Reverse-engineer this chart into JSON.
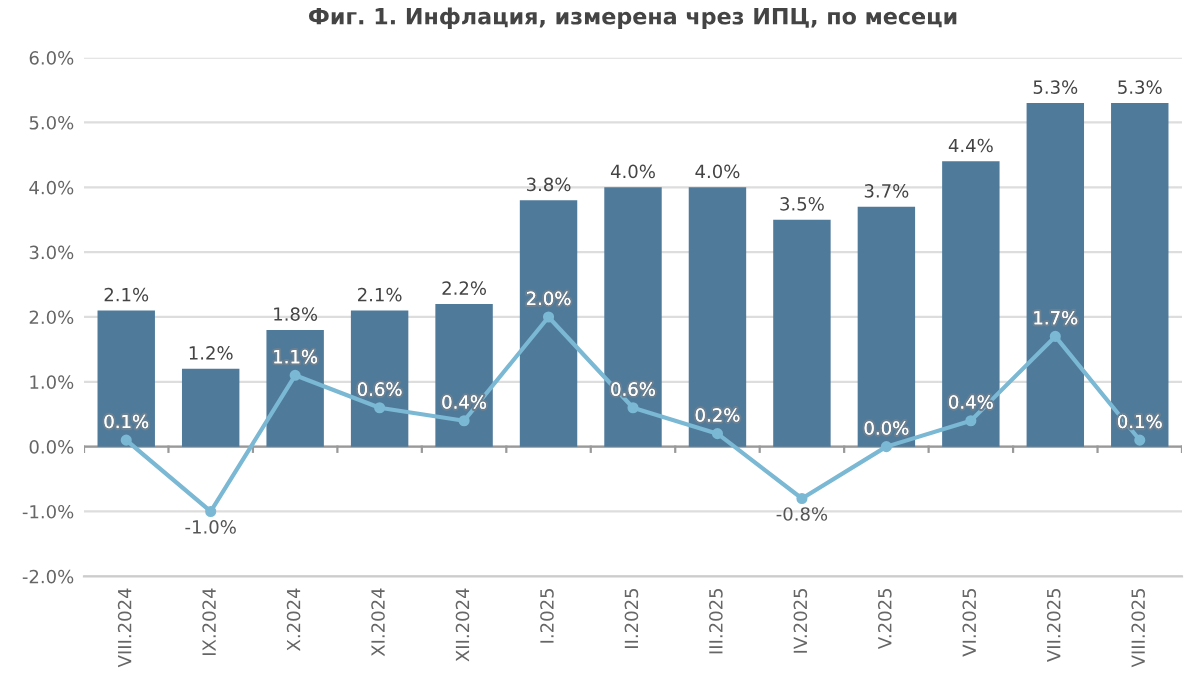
{
  "chart_data": {
    "type": "bar",
    "title": "Фиг. 1. Инфлация, измерена чрез ИПЦ, по месеци",
    "categories": [
      "VIII.2024",
      "IX.2024",
      "X.2024",
      "XI.2024",
      "XII.2024",
      "I.2025",
      "II.2025",
      "III.2025",
      "IV.2025",
      "V.2025",
      "VI.2025",
      "VII.2025",
      "VIII.2025"
    ],
    "series": [
      {
        "color": "#4f7a9a",
        "values": [
          2.1,
          1.2,
          1.8,
          2.1,
          2.2,
          3.8,
          4.0,
          4.0,
          3.5,
          3.7,
          4.4,
          5.3,
          5.3
        ],
        "value_labels": [
          "2.1%",
          "1.2%",
          "1.8%",
          "2.1%",
          "2.2%",
          "3.8%",
          "4.0%",
          "4.0%",
          "3.5%",
          "3.7%",
          "4.4%",
          "5.3%",
          "5.3%"
        ]
      },
      {
        "type": "line",
        "color": "#7ab8d4",
        "marker": "circle",
        "values": [
          0.1,
          -1.0,
          1.1,
          0.6,
          0.4,
          2.0,
          0.6,
          0.2,
          -0.8,
          0.0,
          0.4,
          1.7,
          0.1
        ],
        "value_labels": [
          "0.1%",
          "-1.0%",
          "1.1%",
          "0.6%",
          "0.4%",
          "2.0%",
          "0.6%",
          "0.2%",
          "-0.8%",
          "0.0%",
          "0.4%",
          "1.7%",
          "0.1%"
        ]
      }
    ],
    "ylim": [
      -2.0,
      6.0
    ],
    "yticks": [
      {
        "value": -2.0,
        "label": "-2.0%"
      },
      {
        "value": -1.0,
        "label": "-1.0%"
      },
      {
        "value": 0.0,
        "label": "0.0%"
      },
      {
        "value": 1.0,
        "label": "1.0%"
      },
      {
        "value": 2.0,
        "label": "2.0%"
      },
      {
        "value": 3.0,
        "label": "3.0%"
      },
      {
        "value": 4.0,
        "label": "4.0%"
      },
      {
        "value": 5.0,
        "label": "5.0%"
      },
      {
        "value": 6.0,
        "label": "6.0%"
      }
    ],
    "grid": "y",
    "legend": false
  }
}
